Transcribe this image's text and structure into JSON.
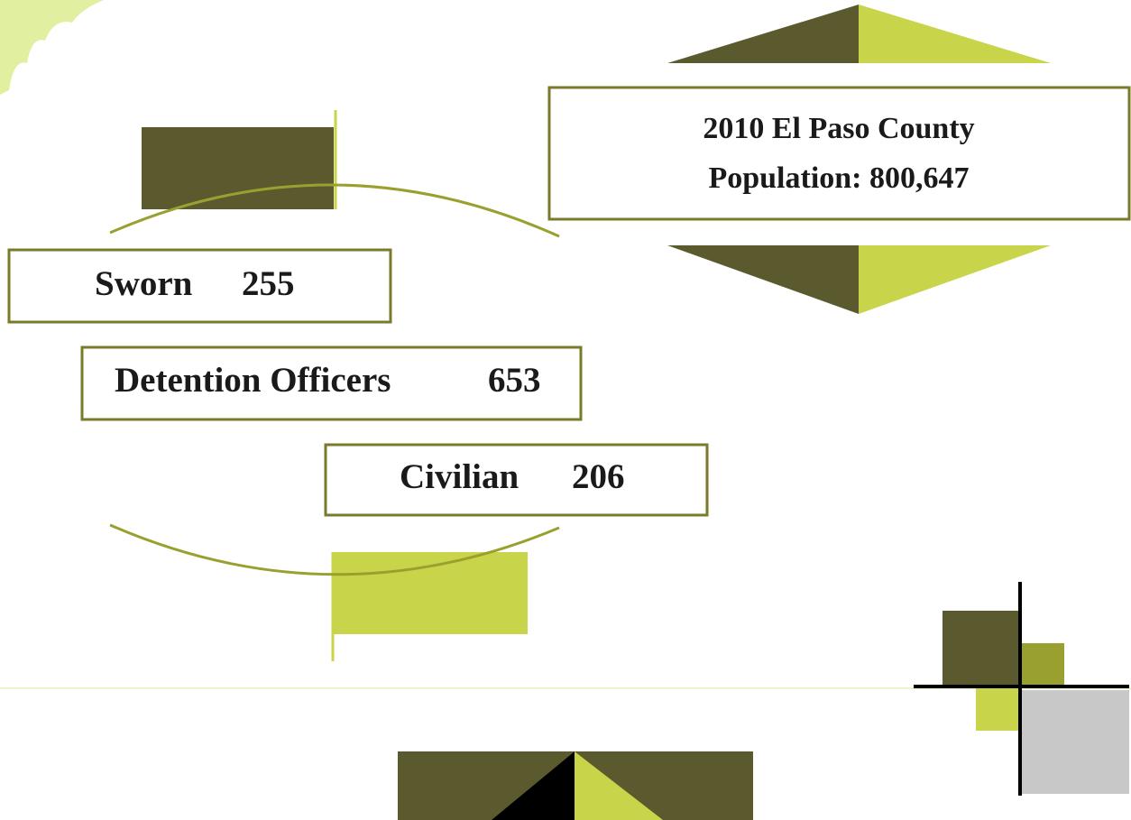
{
  "header": {
    "line1": "2010 El Paso County",
    "line2": "Population: 800,647"
  },
  "staff": [
    {
      "label": "Sworn",
      "count": 255
    },
    {
      "label": "Detention Officers",
      "count": 653
    },
    {
      "label": "Civilian",
      "count": 206
    }
  ]
}
